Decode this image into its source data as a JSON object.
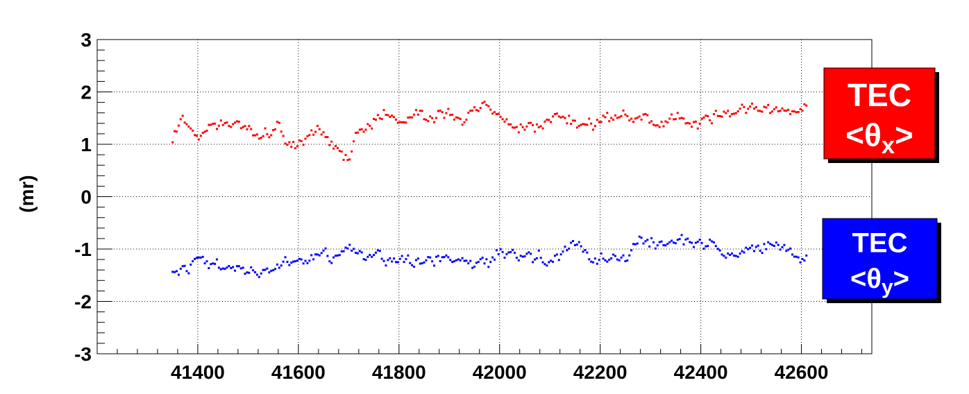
{
  "chart_data": {
    "type": "scatter",
    "ylabel": "(mr)",
    "xlim": [
      41200,
      42740
    ],
    "ylim": [
      -3,
      3
    ],
    "x_ticks": [
      41400,
      41600,
      41800,
      42000,
      42200,
      42400,
      42600
    ],
    "y_ticks": [
      -3,
      -2,
      -1,
      0,
      1,
      2,
      3
    ],
    "grid": true,
    "legend_placement": "right",
    "series": [
      {
        "name": "TEC <θx>",
        "color": "#ff0000",
        "x_start": 41350,
        "x_step": 4,
        "y_range": [
          0.7,
          2.0
        ],
        "y_trend": [
          [
            41350,
            1.15
          ],
          [
            41370,
            1.5
          ],
          [
            41400,
            1.2
          ],
          [
            41460,
            1.55
          ],
          [
            41500,
            1.3
          ],
          [
            41530,
            1.05
          ],
          [
            41560,
            1.4
          ],
          [
            41580,
            1.0
          ],
          [
            41640,
            1.3
          ],
          [
            41700,
            0.8
          ],
          [
            41720,
            1.3
          ],
          [
            41770,
            1.55
          ],
          [
            41800,
            1.45
          ],
          [
            41900,
            1.6
          ],
          [
            41950,
            1.55
          ],
          [
            41990,
            1.55
          ],
          [
            42050,
            1.25
          ],
          [
            42100,
            1.45
          ],
          [
            42200,
            1.35
          ],
          [
            42250,
            1.55
          ],
          [
            42300,
            1.45
          ],
          [
            42400,
            1.45
          ],
          [
            42450,
            1.6
          ],
          [
            42500,
            1.75
          ],
          [
            42550,
            1.65
          ],
          [
            42600,
            1.6
          ]
        ]
      },
      {
        "name": "TEC <θy>",
        "color": "#0000ff",
        "x_start": 41350,
        "x_step": 4,
        "y_range": [
          -1.7,
          -0.55
        ],
        "y_trend": [
          [
            41350,
            -1.45
          ],
          [
            41380,
            -1.5
          ],
          [
            41400,
            -1.3
          ],
          [
            41460,
            -1.35
          ],
          [
            41520,
            -1.45
          ],
          [
            41560,
            -1.3
          ],
          [
            41600,
            -1.2
          ],
          [
            41700,
            -1.1
          ],
          [
            41750,
            -1.2
          ],
          [
            41850,
            -1.2
          ],
          [
            41950,
            -1.3
          ],
          [
            42000,
            -1.1
          ],
          [
            42100,
            -1.15
          ],
          [
            42150,
            -0.95
          ],
          [
            42200,
            -1.15
          ],
          [
            42250,
            -1.1
          ],
          [
            42300,
            -0.85
          ],
          [
            42350,
            -0.95
          ],
          [
            42400,
            -0.9
          ],
          [
            42450,
            -1.1
          ],
          [
            42500,
            -1.0
          ],
          [
            42550,
            -0.9
          ],
          [
            42600,
            -1.2
          ]
        ]
      }
    ],
    "legend": [
      {
        "label": "TEC",
        "symbol": "θ",
        "subscript": "x",
        "color": "#ff0000"
      },
      {
        "label": "TEC",
        "symbol": "θ",
        "subscript": "y",
        "color": "#0000ff"
      }
    ]
  }
}
